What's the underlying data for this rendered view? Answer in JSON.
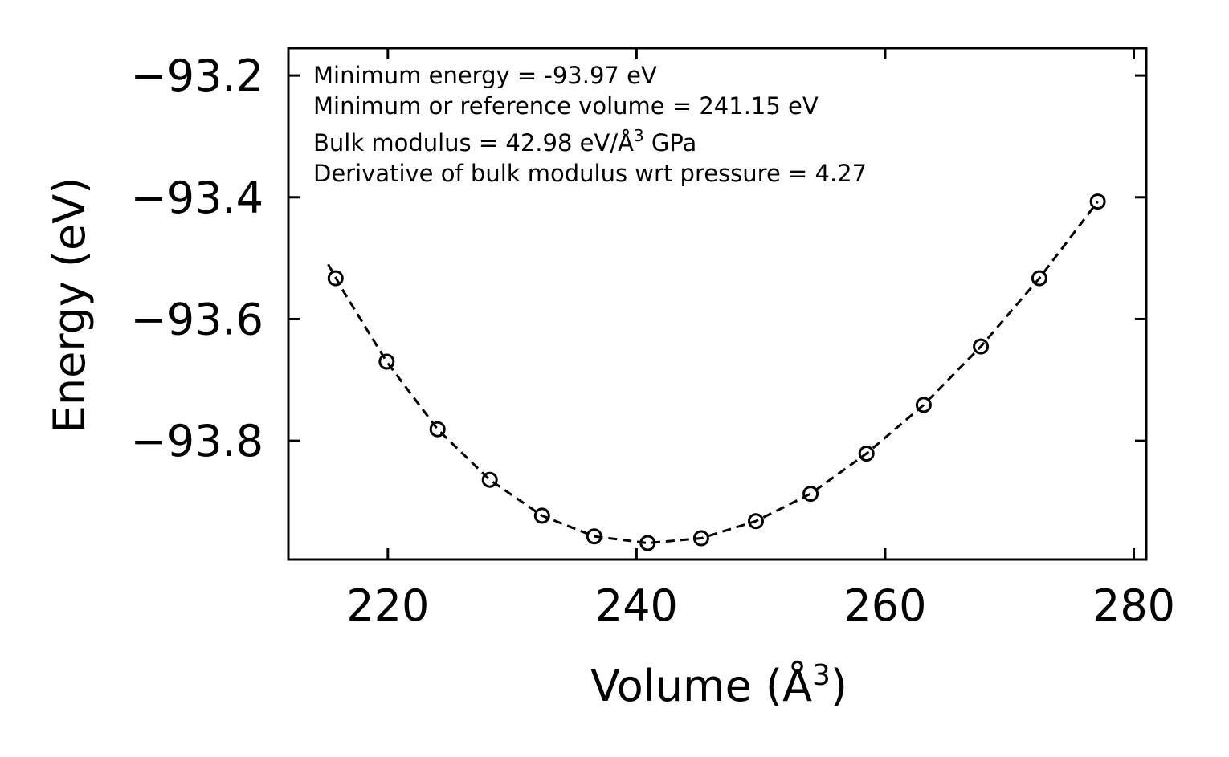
{
  "chart_data": {
    "type": "scatter",
    "title": "",
    "xlabel": "Volume (Å",
    "xlabel_sup": "3",
    "xlabel_suffix": ")",
    "ylabel": "Energy (eV)",
    "xlim": [
      212,
      281
    ],
    "ylim": [
      -93.995,
      -93.155
    ],
    "xticks": [
      220,
      240,
      260,
      280
    ],
    "xtick_labels": [
      "220",
      "240",
      "260",
      "280"
    ],
    "yticks": [
      -93.2,
      -93.4,
      -93.6,
      -93.8
    ],
    "ytick_labels": [
      "−93.2",
      "−93.4",
      "−93.6",
      "−93.8"
    ],
    "grid": false,
    "series": [
      {
        "name": "data points",
        "style": "open-circle",
        "x": [
          215.8,
          219.9,
          224.0,
          228.2,
          232.4,
          236.6,
          240.9,
          245.2,
          249.6,
          254.0,
          258.5,
          263.1,
          267.7,
          272.4,
          277.1
        ],
        "y": [
          -93.533,
          -93.67,
          -93.781,
          -93.864,
          -93.923,
          -93.957,
          -93.968,
          -93.96,
          -93.932,
          -93.887,
          -93.821,
          -93.741,
          -93.645,
          -93.533,
          -93.407
        ]
      },
      {
        "name": "fit",
        "style": "dashed-line",
        "x": [
          215.2,
          216.5,
          219.9,
          224.0,
          228.2,
          232.4,
          236.6,
          240.9,
          245.2,
          249.6,
          254.0,
          258.5,
          263.1,
          267.7,
          272.4,
          277.1
        ],
        "y": [
          -93.51,
          -93.557,
          -93.67,
          -93.781,
          -93.864,
          -93.923,
          -93.957,
          -93.968,
          -93.96,
          -93.932,
          -93.887,
          -93.821,
          -93.741,
          -93.645,
          -93.533,
          -93.407
        ]
      }
    ],
    "annotations": {
      "min_energy": "Minimum energy = -93.97 eV",
      "min_volume": "Minimum or reference volume = 241.15 eV",
      "bulk_modulus_prefix": "Bulk modulus = 42.98 eV/Å",
      "bulk_modulus_sup": "3",
      "bulk_modulus_suffix": " GPa",
      "bulk_derivative": "Derivative of bulk modulus wrt pressure = 4.27"
    },
    "colors": {
      "line": "#000000",
      "marker": "#000000",
      "background": "#ffffff"
    }
  }
}
